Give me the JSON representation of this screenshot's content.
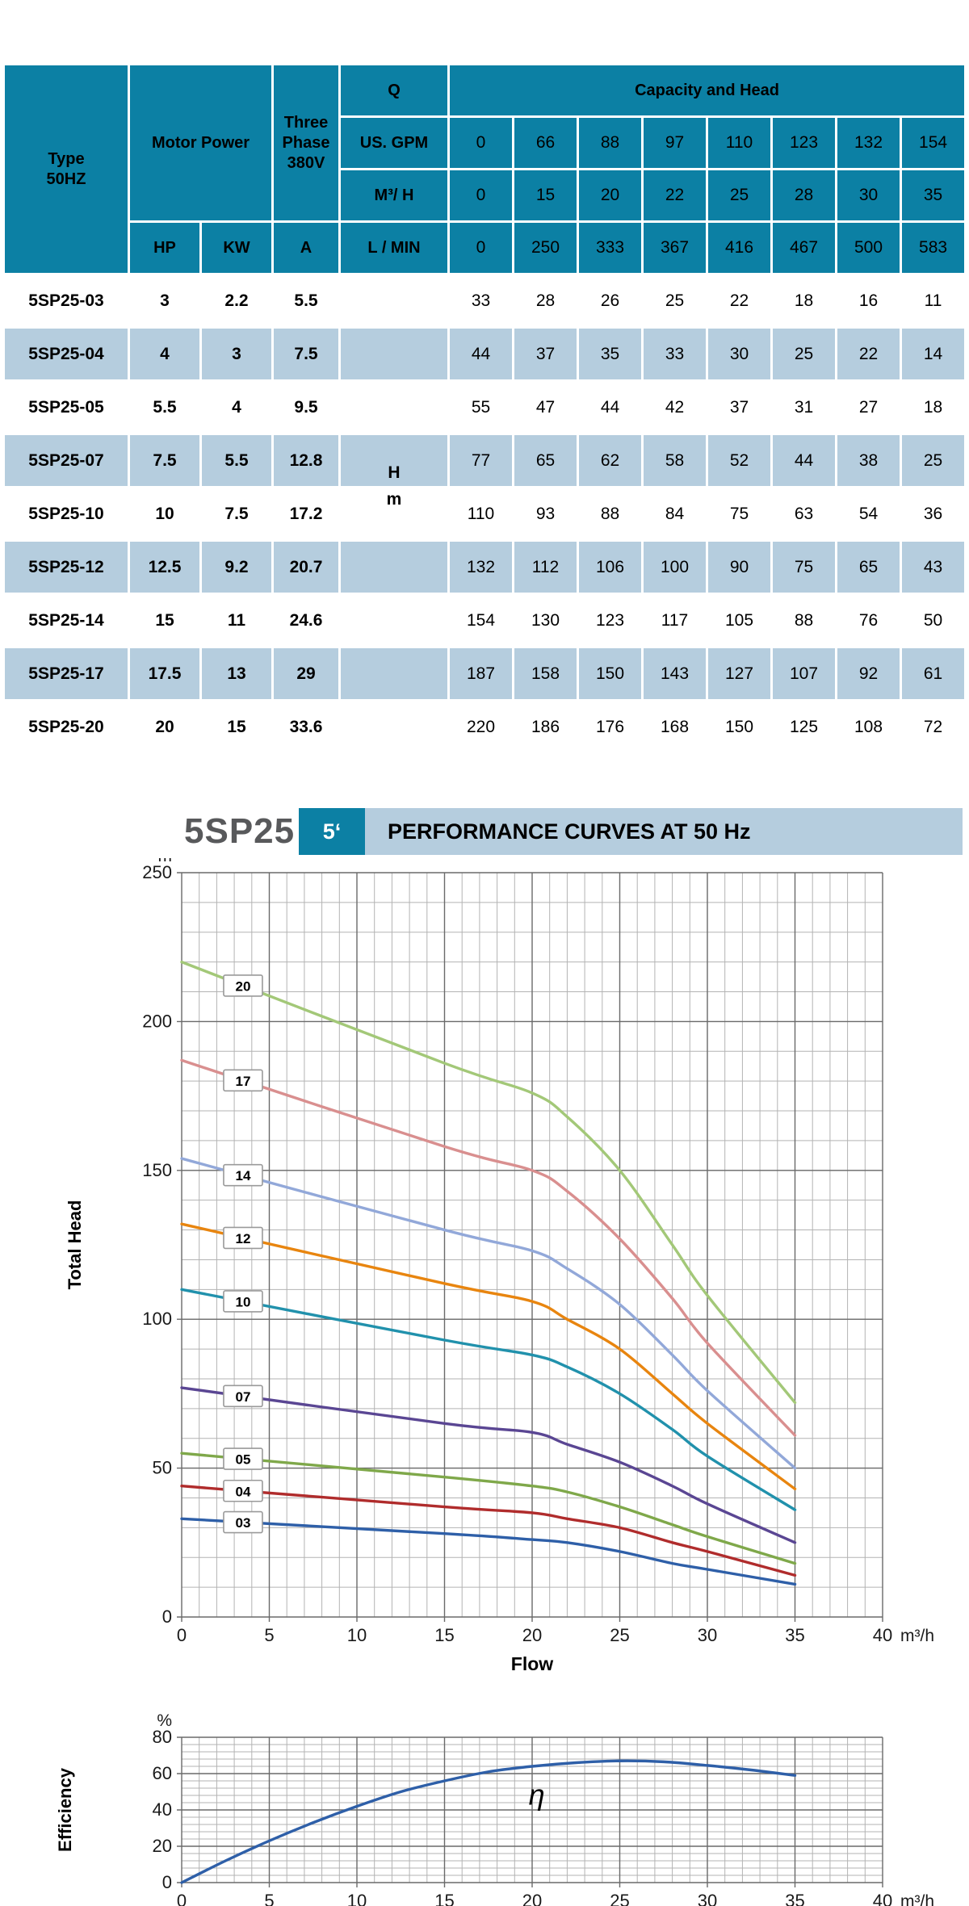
{
  "table": {
    "header": {
      "type_label": "Type\n50HZ",
      "motor_power": "Motor Power",
      "three_phase": "Three\nPhase\n380V",
      "q_label": "Q",
      "capacity_head": "Capacity and Head",
      "us_gpm_label": "US. GPM",
      "us_gpm": [
        "0",
        "66",
        "88",
        "97",
        "110",
        "123",
        "132",
        "154"
      ],
      "m3h_label": "M³/ H",
      "m3h": [
        "0",
        "15",
        "20",
        "22",
        "25",
        "28",
        "30",
        "35"
      ],
      "hp_label": "HP",
      "kw_label": "KW",
      "a_label": "A",
      "lmin_label": "L / MIN",
      "lmin": [
        "0",
        "250",
        "333",
        "367",
        "416",
        "467",
        "500",
        "583"
      ],
      "head_unit_symbol": "H",
      "head_unit_meters": "m"
    },
    "rows": [
      {
        "type": "5SP25-03",
        "hp": "3",
        "kw": "2.2",
        "a": "5.5",
        "unit": "",
        "heads": [
          33,
          28,
          26,
          25,
          22,
          18,
          16,
          11
        ]
      },
      {
        "type": "5SP25-04",
        "hp": "4",
        "kw": "3",
        "a": "7.5",
        "unit": "",
        "heads": [
          44,
          37,
          35,
          33,
          30,
          25,
          22,
          14
        ]
      },
      {
        "type": "5SP25-05",
        "hp": "5.5",
        "kw": "4",
        "a": "9.5",
        "unit": "",
        "heads": [
          55,
          47,
          44,
          42,
          37,
          31,
          27,
          18
        ]
      },
      {
        "type": "5SP25-07",
        "hp": "7.5",
        "kw": "5.5",
        "a": "12.8",
        "unit": "H",
        "heads": [
          77,
          65,
          62,
          58,
          52,
          44,
          38,
          25
        ]
      },
      {
        "type": "5SP25-10",
        "hp": "10",
        "kw": "7.5",
        "a": "17.2",
        "unit": "m",
        "heads": [
          110,
          93,
          88,
          84,
          75,
          63,
          54,
          36
        ]
      },
      {
        "type": "5SP25-12",
        "hp": "12.5",
        "kw": "9.2",
        "a": "20.7",
        "unit": "",
        "heads": [
          132,
          112,
          106,
          100,
          90,
          75,
          65,
          43
        ]
      },
      {
        "type": "5SP25-14",
        "hp": "15",
        "kw": "11",
        "a": "24.6",
        "unit": "",
        "heads": [
          154,
          130,
          123,
          117,
          105,
          88,
          76,
          50
        ]
      },
      {
        "type": "5SP25-17",
        "hp": "17.5",
        "kw": "13",
        "a": "29",
        "unit": "",
        "heads": [
          187,
          158,
          150,
          143,
          127,
          107,
          92,
          61
        ]
      },
      {
        "type": "5SP25-20",
        "hp": "20",
        "kw": "15",
        "a": "33.6",
        "unit": "",
        "heads": [
          220,
          186,
          176,
          168,
          150,
          125,
          108,
          72
        ]
      }
    ]
  },
  "chart_header": {
    "model": "5SP25",
    "badge": "5‘",
    "title": "PERFORMANCE CURVES AT 50 Hz"
  },
  "colors": {
    "header_teal": "#0c80a4",
    "stripe_blue": "#b5cdde",
    "title_gray": "#58595b",
    "grid_minor": "#b3b3b3",
    "grid_major": "#6a6a6a",
    "tick_text": "#1a1a1a"
  },
  "chart_data": [
    {
      "type": "line",
      "title": "PERFORMANCE CURVES AT 50 Hz",
      "xlabel": "Flow",
      "ylabel": "Total Head",
      "x_unit": "m³/h",
      "y_unit": "m",
      "xlim": [
        0,
        40
      ],
      "ylim": [
        0,
        250
      ],
      "x_major": 5,
      "x_minor": 1,
      "y_major": 50,
      "y_minor": 10,
      "grid": "on",
      "legend_position": "on-curve-boxes",
      "curve_label_x": 3.5,
      "x": [
        0,
        15,
        20,
        22,
        25,
        28,
        30,
        35
      ],
      "series": [
        {
          "name": "03",
          "color": "#2e5fa8",
          "values": [
            33,
            28,
            26,
            25,
            22,
            18,
            16,
            11
          ]
        },
        {
          "name": "04",
          "color": "#b02c2c",
          "values": [
            44,
            37,
            35,
            33,
            30,
            25,
            22,
            14
          ]
        },
        {
          "name": "05",
          "color": "#7fa84a",
          "values": [
            55,
            47,
            44,
            42,
            37,
            31,
            27,
            18
          ]
        },
        {
          "name": "07",
          "color": "#5a4693",
          "values": [
            77,
            65,
            62,
            58,
            52,
            44,
            38,
            25
          ]
        },
        {
          "name": "10",
          "color": "#2191ac",
          "values": [
            110,
            93,
            88,
            84,
            75,
            63,
            54,
            36
          ]
        },
        {
          "name": "12",
          "color": "#e8850f",
          "values": [
            132,
            112,
            106,
            100,
            90,
            75,
            65,
            43
          ]
        },
        {
          "name": "14",
          "color": "#92a8d9",
          "values": [
            154,
            130,
            123,
            117,
            105,
            88,
            76,
            50
          ]
        },
        {
          "name": "17",
          "color": "#d98f8f",
          "values": [
            187,
            158,
            150,
            143,
            127,
            107,
            92,
            61
          ]
        },
        {
          "name": "20",
          "color": "#a3c878",
          "values": [
            220,
            186,
            176,
            168,
            150,
            125,
            108,
            72
          ]
        }
      ]
    },
    {
      "type": "line",
      "title": "Efficiency curve",
      "xlabel": "",
      "ylabel": "Efficiency",
      "x_unit": "m³/h",
      "y_unit": "%",
      "xlim": [
        0,
        40
      ],
      "ylim": [
        0,
        80
      ],
      "x_major": 5,
      "x_minor": 1,
      "y_major": 20,
      "y_minor": 4,
      "grid": "on",
      "annotation": "η",
      "annotation_at": [
        19.8,
        43
      ],
      "x": [
        0,
        2.5,
        5,
        7.5,
        10,
        12.5,
        15,
        17.5,
        20,
        22.5,
        25,
        27.5,
        30,
        32.5,
        35
      ],
      "series": [
        {
          "name": "η",
          "color": "#2e5fa8",
          "values": [
            0,
            12,
            23,
            33,
            42,
            50,
            56,
            61,
            64,
            66,
            67,
            66.5,
            64.5,
            62,
            59
          ]
        }
      ]
    }
  ]
}
